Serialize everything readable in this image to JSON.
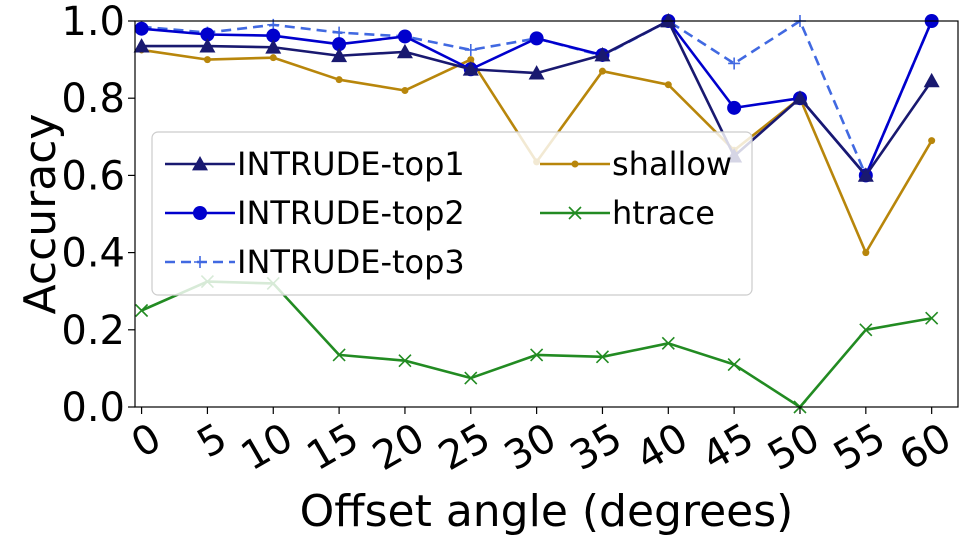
{
  "chart_data": {
    "type": "line",
    "xlabel": "Offset angle (degrees)",
    "ylabel": "Accuracy",
    "x": [
      0,
      5,
      10,
      15,
      20,
      25,
      30,
      35,
      40,
      45,
      50,
      55,
      60
    ],
    "xlim": [
      -0.5,
      62
    ],
    "ylim": [
      0,
      1.0
    ],
    "x_ticks": [
      "0",
      "5",
      "10",
      "15",
      "20",
      "25",
      "30",
      "35",
      "40",
      "45",
      "50",
      "55",
      "60"
    ],
    "y_ticks": [
      "0.0",
      "0.2",
      "0.4",
      "0.6",
      "0.8",
      "1.0"
    ],
    "grid": false,
    "legend_position": "center-left",
    "series": [
      {
        "name": "INTRUDE-top1",
        "color": "#191970",
        "marker": "triangle",
        "dash": "solid",
        "values": [
          0.935,
          0.935,
          0.932,
          0.91,
          0.92,
          0.875,
          0.865,
          0.912,
          1.0,
          0.65,
          0.8,
          0.6,
          0.845
        ]
      },
      {
        "name": "INTRUDE-top2",
        "color": "#0000cd",
        "marker": "circle",
        "dash": "solid",
        "values": [
          0.98,
          0.965,
          0.962,
          0.94,
          0.96,
          0.875,
          0.955,
          0.912,
          1.0,
          0.775,
          0.8,
          0.6,
          1.0
        ]
      },
      {
        "name": "INTRUDE-top3",
        "color": "#4169e1",
        "marker": "plus",
        "dash": "dashed",
        "values": [
          0.985,
          0.97,
          0.99,
          0.97,
          0.96,
          0.925,
          0.955,
          0.91,
          1.0,
          0.89,
          1.0,
          0.6,
          1.0
        ]
      },
      {
        "name": "shallow",
        "color": "#b8860b",
        "marker": "dot",
        "dash": "solid",
        "values": [
          0.925,
          0.9,
          0.905,
          0.848,
          0.82,
          0.9,
          0.635,
          0.87,
          0.835,
          0.665,
          0.8,
          0.4,
          0.69
        ]
      },
      {
        "name": "htrace",
        "color": "#228b22",
        "marker": "x",
        "dash": "solid",
        "values": [
          0.25,
          0.325,
          0.32,
          0.135,
          0.12,
          0.075,
          0.135,
          0.13,
          0.165,
          0.11,
          0.0,
          0.2,
          0.23
        ]
      }
    ]
  }
}
